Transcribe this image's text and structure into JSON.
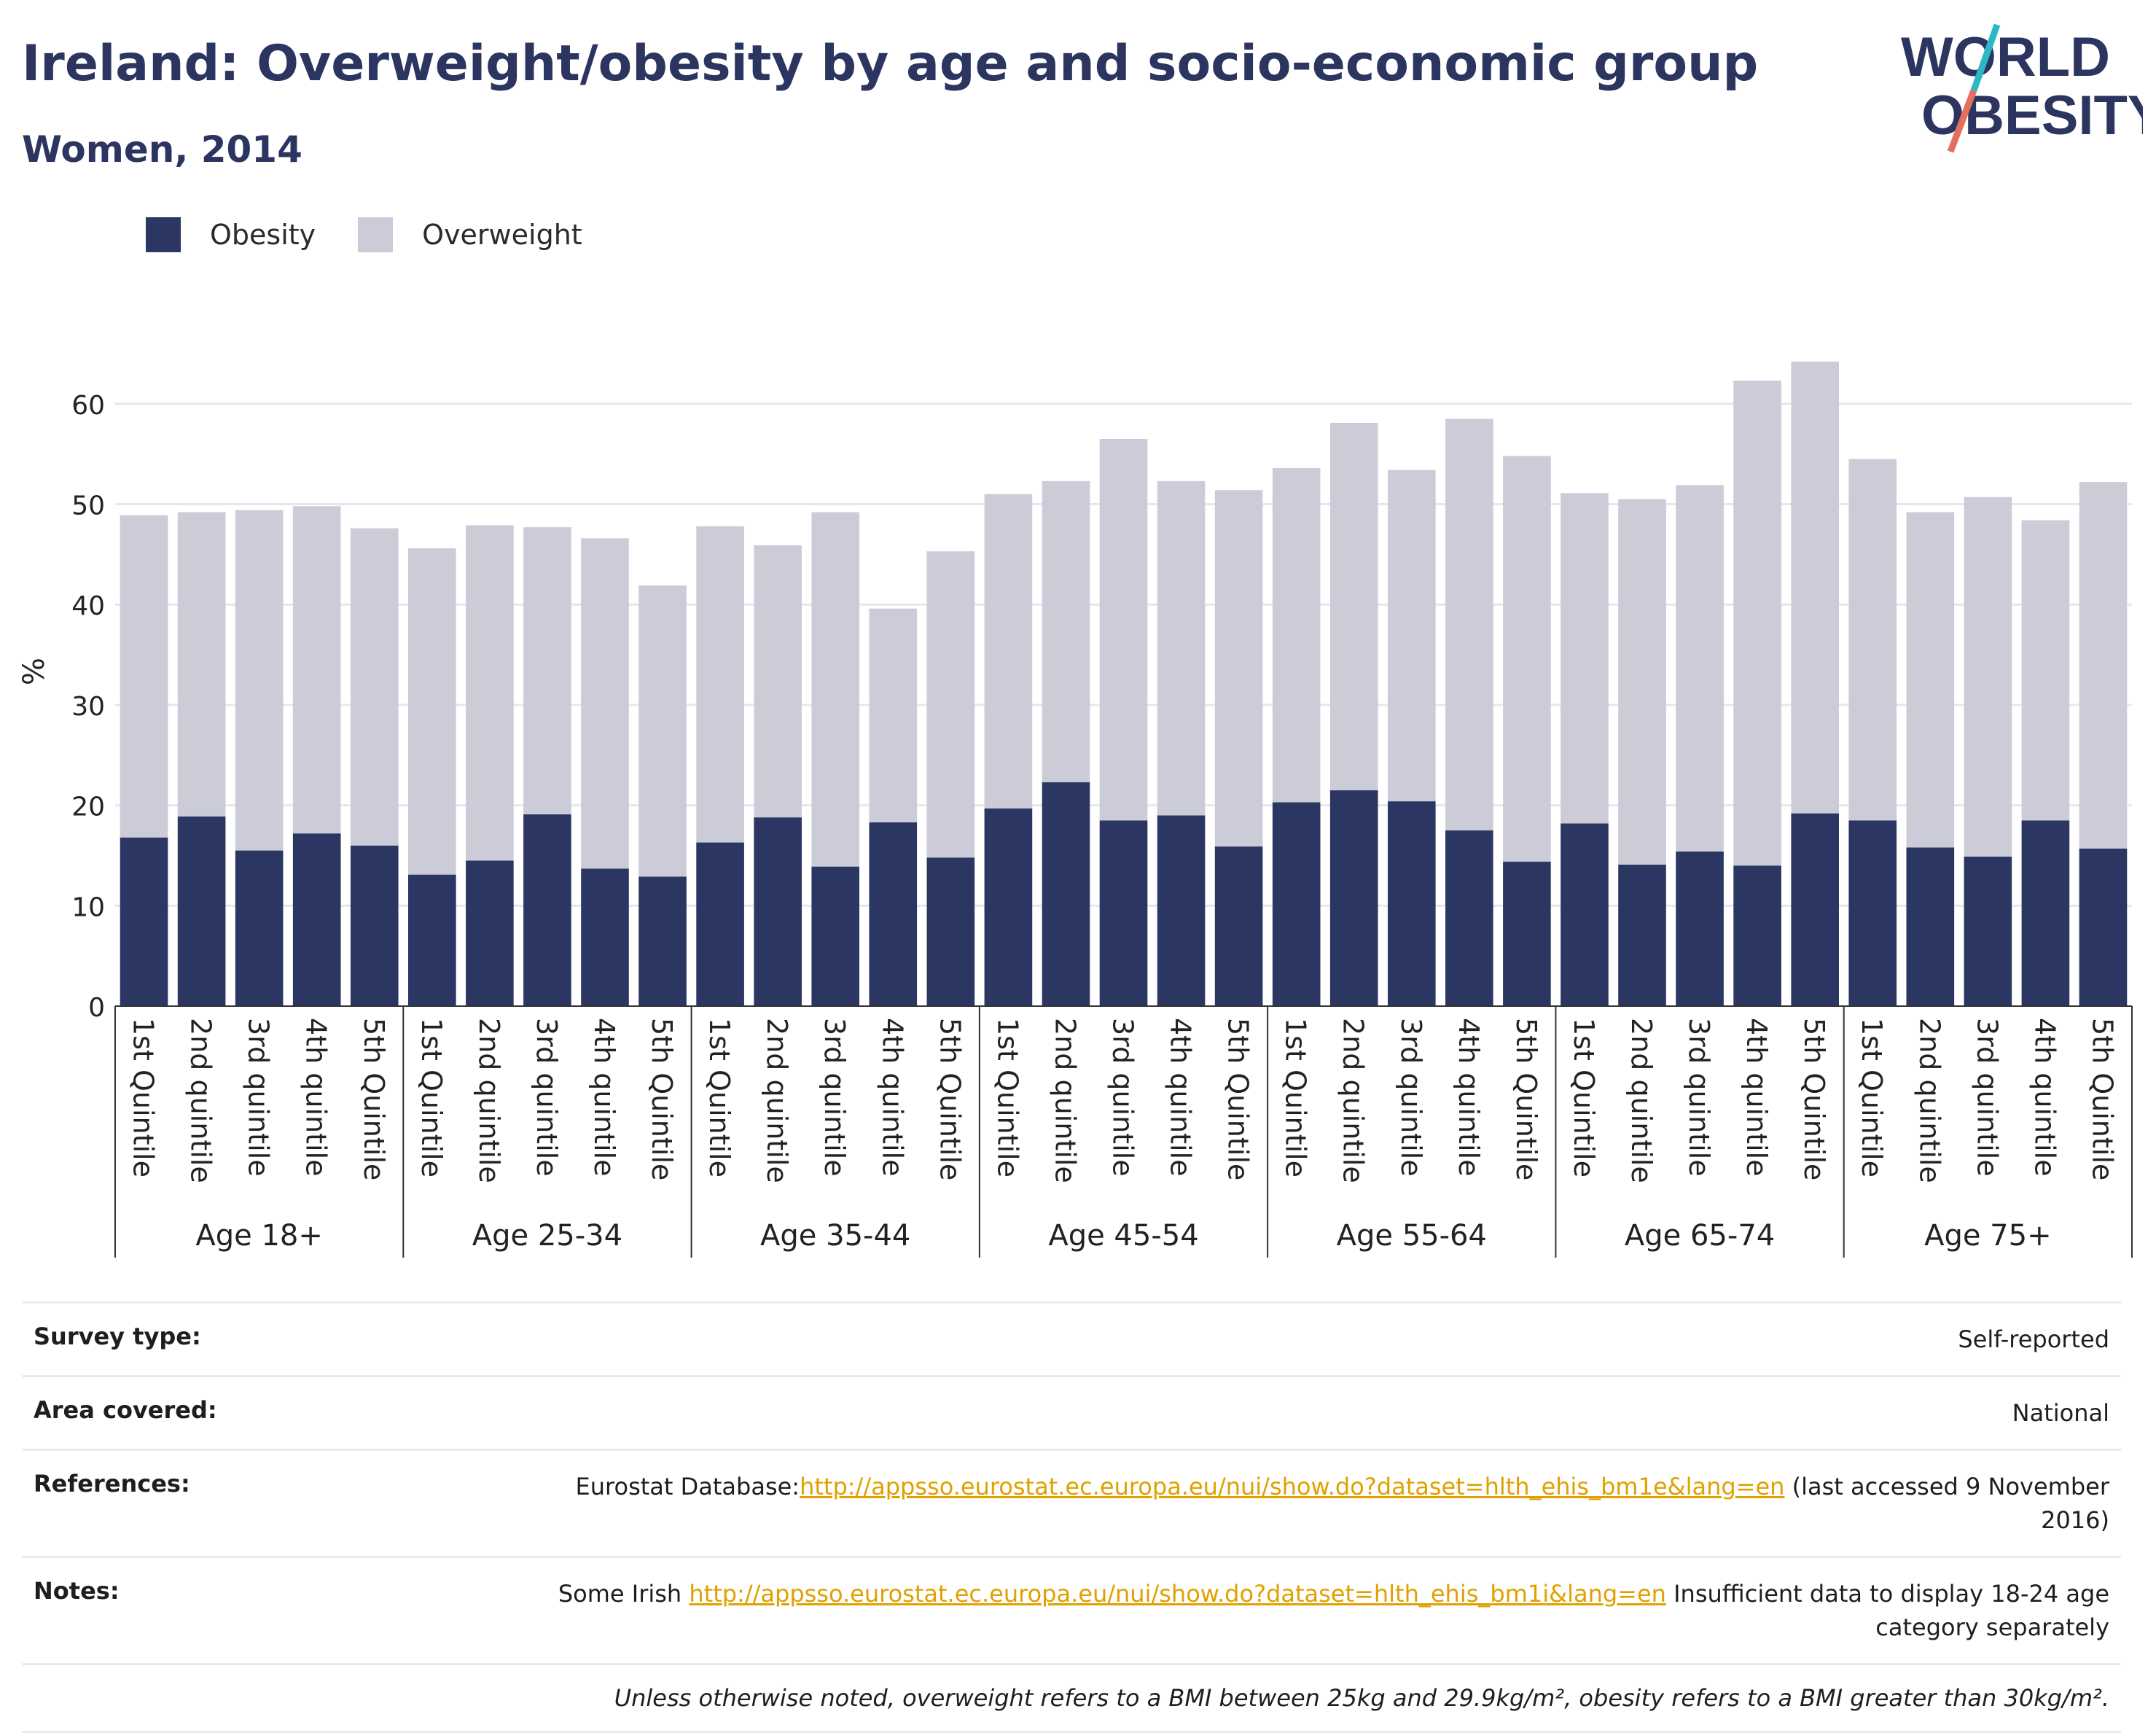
{
  "header": {
    "title": "Ireland: Overweight/obesity by age and socio-economic group",
    "subtitle": "Women, 2014"
  },
  "logo": {
    "line1": "WORLD",
    "line2": "OBESITY",
    "accent_colors": [
      "#2bb8c4",
      "#e2705c"
    ]
  },
  "legend": [
    {
      "label": "Obesity",
      "color": "#2c3663"
    },
    {
      "label": "Overweight",
      "color": "#cbccd8"
    }
  ],
  "chart_data": {
    "type": "bar",
    "stacked": true,
    "ylabel": "%",
    "ylim": [
      0,
      70
    ],
    "yticks": [
      0,
      10,
      20,
      30,
      40,
      50,
      60
    ],
    "grid": true,
    "legend_position": "top-left",
    "groups": [
      {
        "name": "Age 18+",
        "categories": [
          "1st Quintile",
          "2nd quintile",
          "3rd quintile",
          "4th quintile",
          "5th Quintile"
        ]
      },
      {
        "name": "Age 25-34",
        "categories": [
          "1st Quintile",
          "2nd quintile",
          "3rd quintile",
          "4th quintile",
          "5th Quintile"
        ]
      },
      {
        "name": "Age 35-44",
        "categories": [
          "1st Quintile",
          "2nd quintile",
          "3rd quintile",
          "4th quintile",
          "5th Quintile"
        ]
      },
      {
        "name": "Age 45-54",
        "categories": [
          "1st Quintile",
          "2nd quintile",
          "3rd quintile",
          "4th quintile",
          "5th Quintile"
        ]
      },
      {
        "name": "Age 55-64",
        "categories": [
          "1st Quintile",
          "2nd quintile",
          "3rd quintile",
          "4th quintile",
          "5th Quintile"
        ]
      },
      {
        "name": "Age 65-74",
        "categories": [
          "1st Quintile",
          "2nd quintile",
          "3rd quintile",
          "4th quintile",
          "5th Quintile"
        ]
      },
      {
        "name": "Age 75+",
        "categories": [
          "1st Quintile",
          "2nd quintile",
          "3rd quintile",
          "4th quintile",
          "5th Quintile"
        ]
      }
    ],
    "series": [
      {
        "name": "Obesity",
        "color": "#2c3663",
        "values": [
          16.8,
          18.9,
          15.5,
          17.2,
          16.0,
          13.1,
          14.5,
          19.1,
          13.7,
          12.9,
          16.3,
          18.8,
          13.9,
          18.3,
          14.8,
          19.7,
          22.3,
          18.5,
          19.0,
          15.9,
          20.3,
          21.5,
          20.4,
          17.5,
          14.4,
          18.2,
          14.1,
          15.4,
          14.0,
          19.2,
          18.5,
          15.8,
          14.9,
          18.5,
          15.7
        ]
      },
      {
        "name": "Overweight",
        "color": "#cbccd8",
        "values": [
          32.1,
          30.3,
          33.9,
          32.6,
          31.6,
          32.5,
          33.4,
          28.6,
          32.9,
          29.0,
          31.5,
          27.1,
          35.3,
          21.3,
          30.5,
          31.3,
          30.0,
          38.0,
          33.3,
          35.5,
          33.3,
          36.6,
          33.0,
          41.0,
          40.4,
          32.9,
          36.4,
          36.5,
          48.3,
          45.0,
          36.0,
          33.4,
          35.8,
          29.9,
          36.5
        ]
      }
    ]
  },
  "info": [
    {
      "label": "Survey type:",
      "text": "Self-reported"
    },
    {
      "label": "Area covered:",
      "text": "National"
    },
    {
      "label": "References:",
      "prefix": "Eurostat Database:",
      "link": "http://appsso.eurostat.ec.europa.eu/nui/show.do?dataset=hlth_ehis_bm1e&lang=en",
      "suffix_line1": " (last accessed 9 November",
      "suffix_line2": "2016)"
    },
    {
      "label": "Notes:",
      "prefix": "Some Irish ",
      "link": "http://appsso.eurostat.ec.europa.eu/nui/show.do?dataset=hlth_ehis_bm1i&lang=en",
      "suffix_line1": " Insufficient data to display 18-24 age",
      "suffix_line2": "category separately"
    }
  ],
  "footnote": "Unless otherwise noted, overweight refers to a BMI between 25kg and 29.9kg/m², obesity refers to a BMI greater than 30kg/m²."
}
